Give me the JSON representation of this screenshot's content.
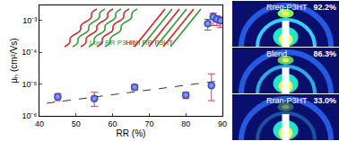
{
  "chart_data": {
    "type": "scatter",
    "x_label": "RR (%)",
    "y_label": "μₕ (cm²/Vs)",
    "log": "y",
    "xlim": [
      40,
      90
    ],
    "xticks": [
      40,
      50,
      60,
      70,
      80,
      90
    ],
    "ylim": [
      1e-06,
      0.003
    ],
    "yticks": [
      {
        "value": 1e-06,
        "label": "10⁻⁶"
      },
      {
        "value": 1e-05,
        "label": "10⁻⁵"
      },
      {
        "value": 0.0001,
        "label": "10⁻⁴"
      },
      {
        "value": 0.001,
        "label": "10⁻³"
      }
    ],
    "grid": false,
    "series": [
      {
        "type": "scatter",
        "color": "#3a4fd6",
        "marker": "circle",
        "x": [
          45,
          55,
          66,
          80,
          87
        ],
        "values": [
          4e-06,
          3.5e-06,
          8e-06,
          4.5e-06,
          9e-06
        ],
        "error_plus": [
          1e-06,
          2e-06,
          1.5e-06,
          1e-06,
          1.2e-05
        ],
        "error_minus": [
          1e-06,
          1.5e-06,
          1.5e-06,
          1e-06,
          6e-06
        ]
      },
      {
        "type": "scatter",
        "color": "#3a4fd6",
        "marker": "circle",
        "x": [
          86,
          87.5,
          88.5,
          89.5
        ],
        "values": [
          0.0008,
          0.0013,
          0.0011,
          0.001
        ],
        "error_plus": [
          0.0003,
          0.0004,
          0.0003,
          0.0003
        ],
        "error_minus": [
          0.0003,
          0.0006,
          0.0004,
          0.0004
        ]
      },
      {
        "type": "line",
        "color": "#333333",
        "line_style": "dashed",
        "x": [
          42,
          90
        ],
        "values": [
          2.5e-06,
          1.3e-05
        ]
      }
    ],
    "annotations": [
      {
        "text": "Low RR P3HT"
      },
      {
        "text": "High RR P3HT"
      }
    ]
  },
  "panels": [
    {
      "label": "Rreg-P3HT",
      "value": "92.2%"
    },
    {
      "label": "Blend",
      "value": "86.3%"
    },
    {
      "label": "Rran-P3HT",
      "value": "33.0%"
    }
  ]
}
